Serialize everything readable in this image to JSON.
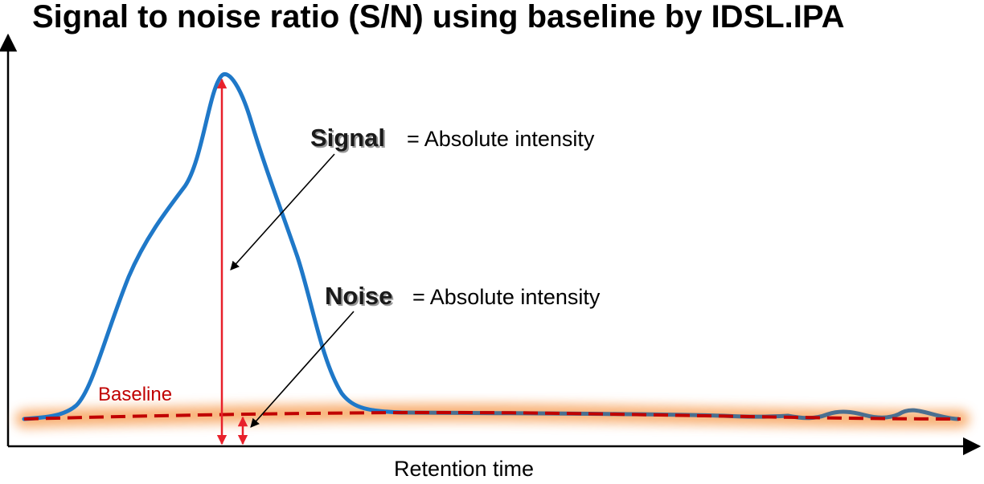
{
  "title": "Signal to noise ratio (S/N) using baseline by IDSL.IPA",
  "x_axis_label": "Retention time",
  "baseline_label": "Baseline",
  "signal": {
    "term": "Signal",
    "definition": "= Absolute intensity"
  },
  "noise": {
    "term": "Noise",
    "definition": "= Absolute intensity"
  },
  "colors": {
    "chromatogram": "#1f78c8",
    "tail": "#4a6f90",
    "baseline": "#c00000",
    "baseline_glow": "#f7a35c",
    "arrows": "#e8202a",
    "pointers": "#000000"
  }
}
